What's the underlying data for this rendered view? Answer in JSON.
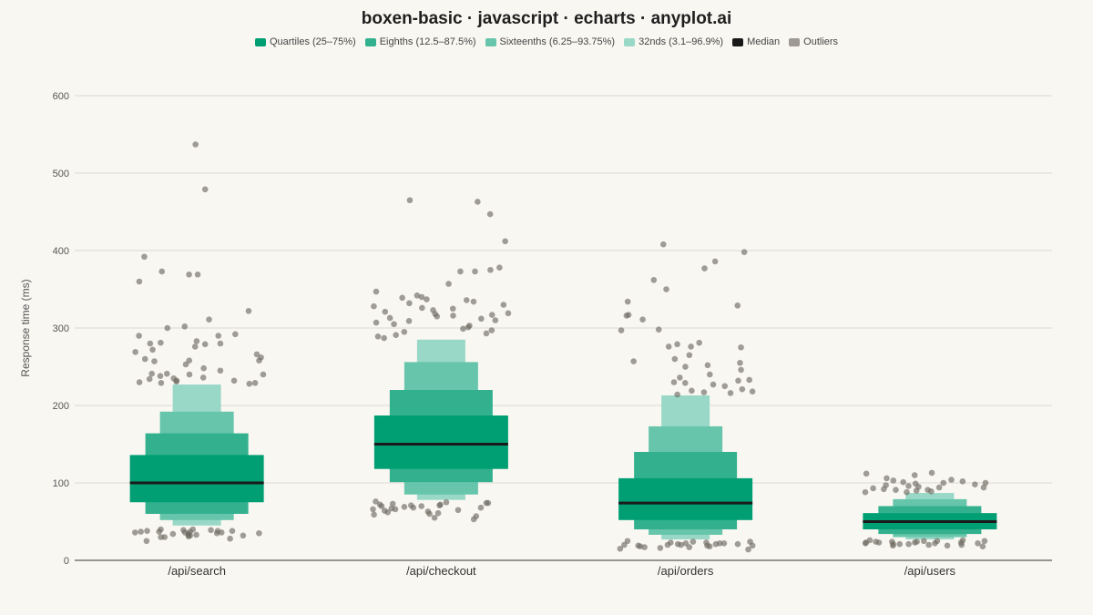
{
  "title": "boxen-basic · javascript · echarts · anyplot.ai",
  "legend": [
    {
      "label": "Quartiles (25–75%)",
      "color": "#009e73"
    },
    {
      "label": "Eighths (12.5–87.5%)",
      "color": "#33b18f"
    },
    {
      "label": "Sixteenths (6.25–93.75%)",
      "color": "#66c5ab"
    },
    {
      "label": "32nds (3.1–96.9%)",
      "color": "#99d8c7"
    },
    {
      "label": "Median",
      "color": "#1a1a1a"
    },
    {
      "label": "Outliers",
      "color": "#9e9a93"
    }
  ],
  "chart_data": {
    "type": "boxen",
    "title": "boxen-basic · javascript · echarts · anyplot.ai",
    "ylabel": "Response time (ms)",
    "xlabel": "",
    "ylim": [
      0,
      600
    ],
    "yticks": [
      0,
      100,
      200,
      300,
      400,
      500,
      600
    ],
    "grid": true,
    "legend_position": "top",
    "categories": [
      "/api/search",
      "/api/checkout",
      "/api/orders",
      "/api/users"
    ],
    "series": [
      {
        "category": "/api/search",
        "median": 100,
        "levels": [
          {
            "lo": 75,
            "hi": 136
          },
          {
            "lo": 60,
            "hi": 164
          },
          {
            "lo": 52,
            "hi": 192
          },
          {
            "lo": 45,
            "hi": 227
          }
        ],
        "outliers": [
          537,
          479,
          392,
          373,
          369,
          369,
          360,
          322,
          311,
          302,
          300,
          292,
          290,
          290,
          283,
          281,
          280,
          280,
          279,
          276,
          272,
          269,
          266,
          262,
          260,
          258,
          258,
          257,
          253,
          248,
          245,
          241,
          241,
          240,
          240,
          238,
          236,
          235,
          234,
          232,
          232,
          231,
          230,
          229,
          229,
          228,
          40,
          40,
          39,
          39,
          38,
          38,
          38,
          37,
          37,
          37,
          36,
          36,
          36,
          35,
          35,
          34,
          34,
          33,
          33,
          32,
          32,
          31,
          30,
          30,
          28,
          25
        ]
      },
      {
        "category": "/api/checkout",
        "median": 150,
        "levels": [
          {
            "lo": 118,
            "hi": 187
          },
          {
            "lo": 101,
            "hi": 220
          },
          {
            "lo": 85,
            "hi": 256
          },
          {
            "lo": 78,
            "hi": 285
          }
        ],
        "outliers": [
          465,
          463,
          447,
          412,
          378,
          375,
          373,
          373,
          357,
          347,
          342,
          340,
          339,
          337,
          336,
          334,
          332,
          330,
          328,
          326,
          325,
          323,
          321,
          319,
          318,
          317,
          316,
          315,
          313,
          312,
          310,
          309,
          307,
          305,
          303,
          301,
          299,
          297,
          295,
          293,
          291,
          289,
          287,
          76,
          75,
          74,
          74,
          73,
          72,
          72,
          71,
          71,
          70,
          70,
          69,
          68,
          68,
          67,
          66,
          66,
          65,
          64,
          63,
          62,
          61,
          60,
          59,
          57,
          55,
          53
        ]
      },
      {
        "category": "/api/orders",
        "median": 74,
        "levels": [
          {
            "lo": 52,
            "hi": 106
          },
          {
            "lo": 40,
            "hi": 140
          },
          {
            "lo": 33,
            "hi": 173
          },
          {
            "lo": 27,
            "hi": 213
          }
        ],
        "outliers": [
          408,
          398,
          386,
          377,
          362,
          350,
          334,
          329,
          317,
          316,
          311,
          298,
          297,
          281,
          279,
          276,
          276,
          275,
          265,
          260,
          257,
          255,
          252,
          250,
          246,
          240,
          236,
          233,
          232,
          230,
          229,
          227,
          225,
          221,
          219,
          218,
          217,
          216,
          214,
          25,
          24,
          24,
          23,
          23,
          22,
          22,
          22,
          21,
          21,
          21,
          20,
          20,
          20,
          19,
          19,
          19,
          18,
          18,
          17,
          17,
          16,
          15,
          14
        ]
      },
      {
        "category": "/api/users",
        "median": 50,
        "levels": [
          {
            "lo": 40,
            "hi": 61
          },
          {
            "lo": 34,
            "hi": 70
          },
          {
            "lo": 30,
            "hi": 79
          },
          {
            "lo": 27,
            "hi": 87
          }
        ],
        "outliers": [
          113,
          112,
          110,
          106,
          104,
          103,
          102,
          101,
          100,
          100,
          99,
          98,
          97,
          96,
          95,
          94,
          94,
          93,
          92,
          91,
          91,
          90,
          89,
          88,
          88,
          26,
          26,
          25,
          25,
          25,
          24,
          24,
          24,
          23,
          23,
          23,
          23,
          22,
          22,
          22,
          21,
          21,
          21,
          20,
          20,
          19,
          19,
          18
        ]
      }
    ]
  }
}
